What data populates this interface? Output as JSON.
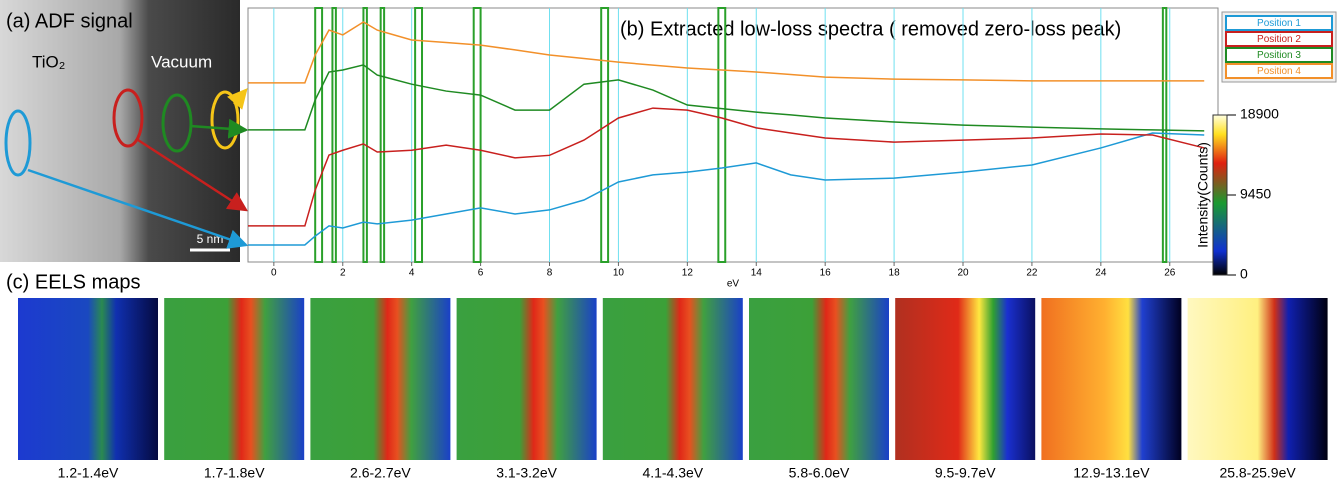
{
  "panel_a": {
    "title": "(a) ADF signal",
    "material": "TiO₂",
    "vacuum": "Vacuum",
    "scale_bar": "5 nm"
  },
  "chart_data": {
    "type": "line",
    "title": "(b) Extracted low-loss spectra ( removed zero-loss peak)",
    "x_label": "eV",
    "x": [
      -0.75,
      0.9,
      1.2,
      1.6,
      2,
      2.6,
      3,
      4,
      5,
      6,
      7,
      8,
      9,
      10,
      11,
      12,
      13,
      14,
      15,
      16,
      18,
      20,
      22,
      24,
      25.5,
      27
    ],
    "series": [
      {
        "name": "Position 1",
        "color": "#1e9ad6",
        "values": [
          6.7,
          6.7,
          10.2,
          14.2,
          13.4,
          15.7,
          15,
          16.5,
          18.9,
          21.3,
          18.9,
          20.5,
          24.4,
          31.5,
          34.3,
          35.4,
          37,
          39,
          34.3,
          32.3,
          33,
          35.4,
          38.2,
          44.9,
          50.8,
          50
        ]
      },
      {
        "name": "Position 2",
        "color": "#c8201e",
        "values": [
          14.2,
          14.2,
          28.3,
          42.1,
          44,
          46.5,
          43.3,
          44,
          46,
          44,
          41,
          42,
          48,
          56.7,
          60.6,
          59.8,
          56.7,
          52.8,
          50.8,
          48.8,
          47.2,
          48,
          48.8,
          50.4,
          50,
          44.9
        ]
      },
      {
        "name": "Position 3",
        "color": "#1f8a22",
        "values": [
          52,
          52,
          63.8,
          74.8,
          75.6,
          77.6,
          73.6,
          70,
          67.3,
          65.7,
          59.8,
          59.8,
          70,
          71.7,
          67.7,
          61.8,
          60.4,
          59,
          57.9,
          56.7,
          55.1,
          53.9,
          53.1,
          52.4,
          52,
          51.6
        ]
      },
      {
        "name": "Position 4",
        "color": "#f2902a",
        "values": [
          70.5,
          70.5,
          81.5,
          91.3,
          89.4,
          94.5,
          91.3,
          87.4,
          86.4,
          85.4,
          83.5,
          81.5,
          80.1,
          78.7,
          77.5,
          76.4,
          75.6,
          74.8,
          73.8,
          72.8,
          72,
          71.7,
          71.3,
          71.3,
          71.3,
          71.3
        ]
      }
    ],
    "windows": [
      [
        1.2,
        1.4
      ],
      [
        1.7,
        1.8
      ],
      [
        2.6,
        2.7
      ],
      [
        3.1,
        3.2
      ],
      [
        4.1,
        4.3
      ],
      [
        5.8,
        6.0
      ],
      [
        9.5,
        9.7
      ],
      [
        12.9,
        13.1
      ],
      [
        25.8,
        25.9
      ]
    ],
    "window_color": "#2aa02a",
    "xlim": [
      -0.75,
      27.4
    ],
    "ylim": [
      0,
      100
    ],
    "xticks": [
      0,
      2,
      4,
      6,
      8,
      10,
      12,
      14,
      16,
      18,
      20,
      22,
      24,
      26
    ],
    "grid": true
  },
  "colorbar": {
    "label": "Intensity(Counts)",
    "lim": [
      0,
      18900
    ],
    "ticks": [
      0,
      9450,
      18900
    ]
  },
  "panel_c": {
    "title": "(c) EELS maps",
    "maps": [
      "1.2-1.4eV",
      "1.7-1.8eV",
      "2.6-2.7eV",
      "3.1-3.2eV",
      "4.1-4.3eV",
      "5.8-6.0eV",
      "9.5-9.7eV",
      "12.9-13.1eV",
      "25.8-25.9eV"
    ]
  }
}
